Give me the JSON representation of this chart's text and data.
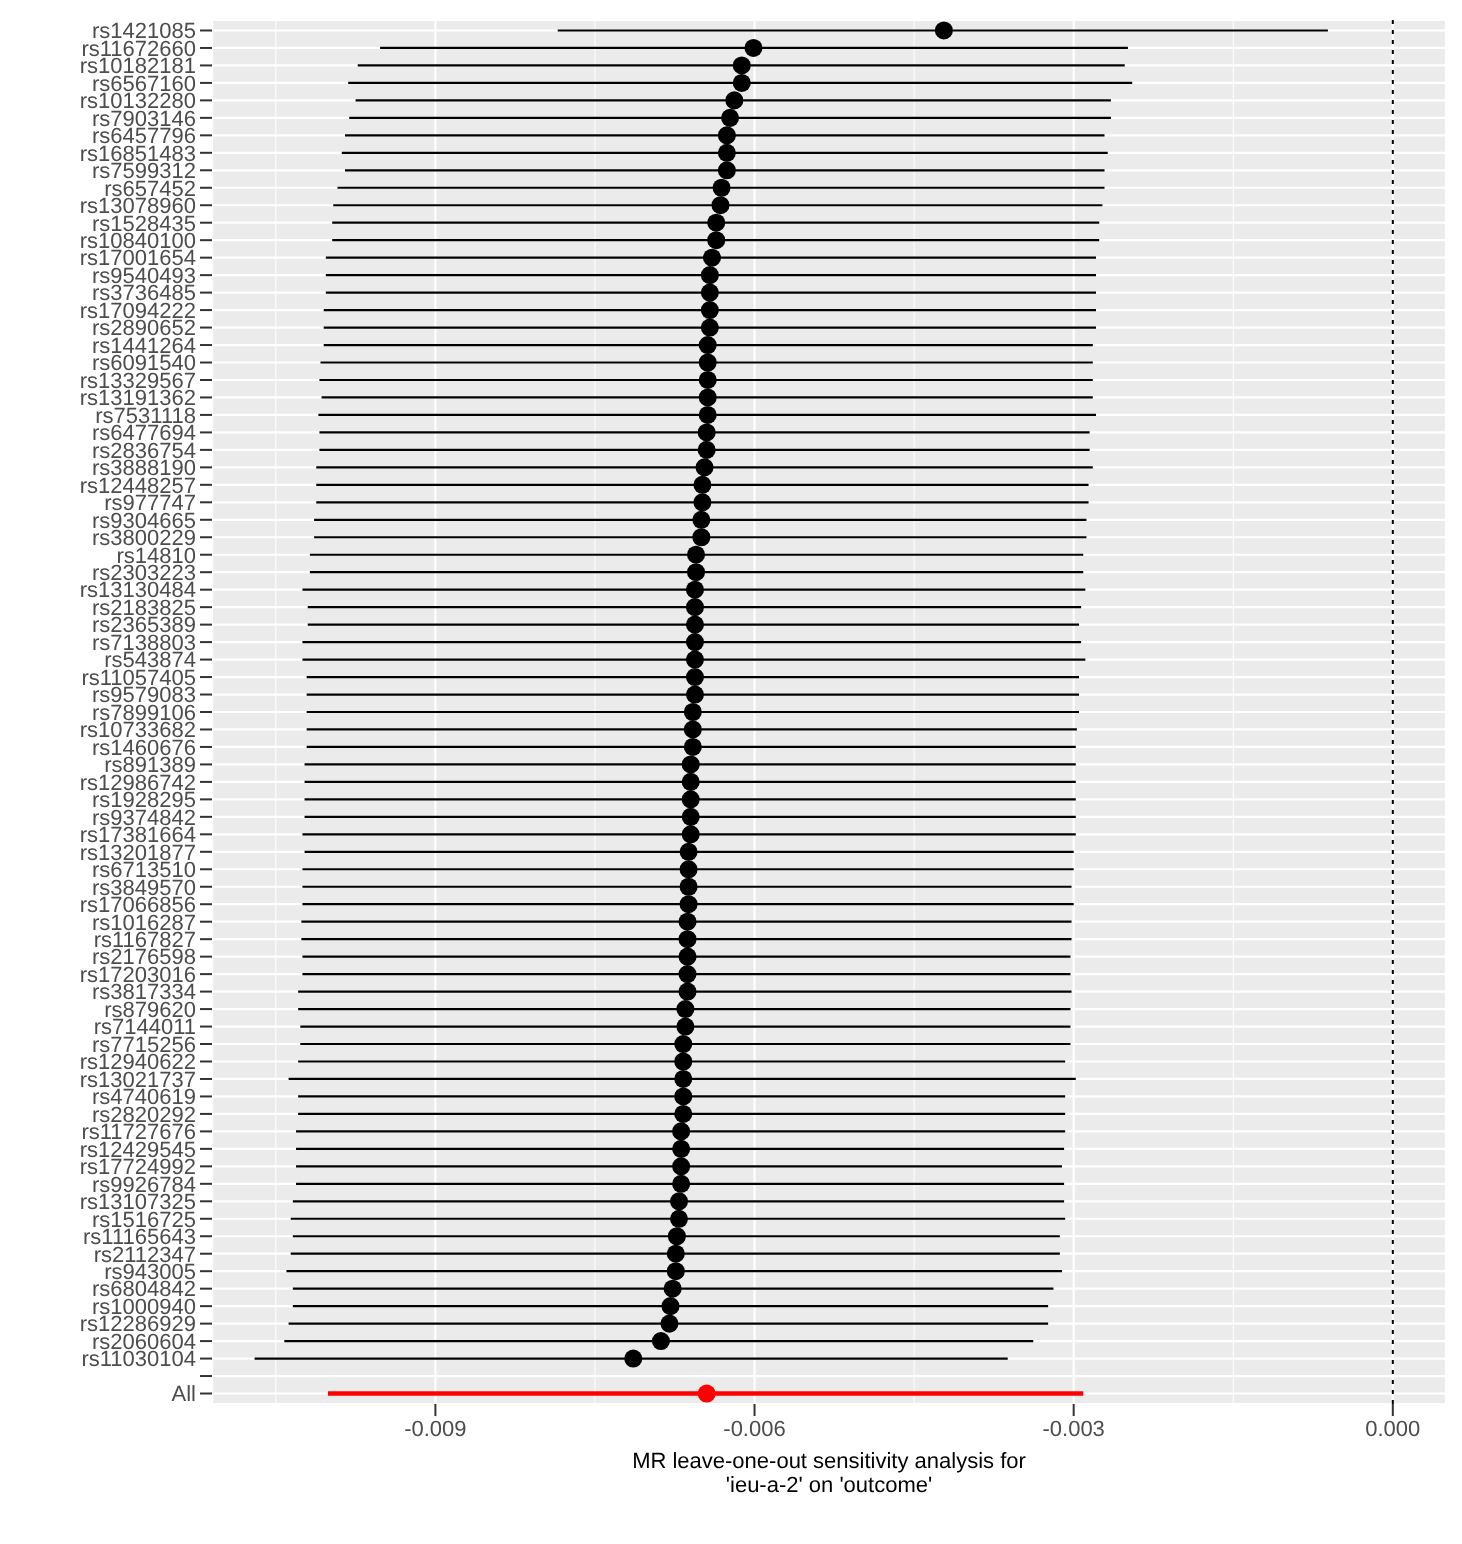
{
  "chart_data": {
    "type": "scatter",
    "orientation": "horizontal",
    "xlabel": "MR leave-one-out sensitivity analysis for\n'ieu-a-2' on 'outcome'",
    "categories": [
      "rs1421085",
      "rs11672660",
      "rs10182181",
      "rs6567160",
      "rs10132280",
      "rs7903146",
      "rs6457796",
      "rs16851483",
      "rs7599312",
      "rs657452",
      "rs13078960",
      "rs1528435",
      "rs10840100",
      "rs17001654",
      "rs9540493",
      "rs3736485",
      "rs17094222",
      "rs2890652",
      "rs1441264",
      "rs6091540",
      "rs13329567",
      "rs13191362",
      "rs7531118",
      "rs6477694",
      "rs2836754",
      "rs3888190",
      "rs12448257",
      "rs977747",
      "rs9304665",
      "rs3800229",
      "rs14810",
      "rs2303223",
      "rs13130484",
      "rs2183825",
      "rs2365389",
      "rs7138803",
      "rs543874",
      "rs11057405",
      "rs9579083",
      "rs7899106",
      "rs10733682",
      "rs1460676",
      "rs891389",
      "rs12986742",
      "rs1928295",
      "rs9374842",
      "rs17381664",
      "rs13201877",
      "rs6713510",
      "rs3849570",
      "rs17066856",
      "rs1016287",
      "rs1167827",
      "rs2176598",
      "rs17203016",
      "rs3817334",
      "rs879620",
      "rs7144011",
      "rs7715256",
      "rs12940622",
      "rs13021737",
      "rs4740619",
      "rs2820292",
      "rs11727676",
      "rs12429545",
      "rs17724992",
      "rs9926784",
      "rs13107325",
      "rs1516725",
      "rs11165643",
      "rs2112347",
      "rs943005",
      "rs6804842",
      "rs1000940",
      "rs12286929",
      "rs2060604",
      "rs11030104",
      null,
      "All"
    ],
    "series": [
      {
        "color": "#000000",
        "values": [
          -0.00422,
          -0.00601,
          -0.00612,
          -0.00612,
          -0.00619,
          -0.00623,
          -0.00626,
          -0.00626,
          -0.00626,
          -0.00631,
          -0.00632,
          -0.00636,
          -0.00636,
          -0.0064,
          -0.00642,
          -0.00642,
          -0.00642,
          -0.00642,
          -0.00644,
          -0.00644,
          -0.00644,
          -0.00644,
          -0.00644,
          -0.00645,
          -0.00645,
          -0.00647,
          -0.00649,
          -0.00649,
          -0.0065,
          -0.0065,
          -0.00655,
          -0.00655,
          -0.00656,
          -0.00656,
          -0.00656,
          -0.00656,
          -0.00656,
          -0.00656,
          -0.00656,
          -0.00658,
          -0.00658,
          -0.00658,
          -0.0066,
          -0.0066,
          -0.0066,
          -0.0066,
          -0.0066,
          -0.00662,
          -0.00662,
          -0.00662,
          -0.00662,
          -0.00663,
          -0.00663,
          -0.00663,
          -0.00663,
          -0.00663,
          -0.00665,
          -0.00665,
          -0.00667,
          -0.00667,
          -0.00667,
          -0.00667,
          -0.00667,
          -0.00669,
          -0.00669,
          -0.00669,
          -0.00669,
          -0.00671,
          -0.00671,
          -0.00673,
          -0.00674,
          -0.00674,
          -0.00677,
          -0.00679,
          -0.0068,
          -0.00688,
          -0.00714,
          null,
          null
        ],
        "errors": [
          [
            -0.00785,
            -0.00061
          ],
          [
            -0.00952,
            -0.00249
          ],
          [
            -0.00973,
            -0.00252
          ],
          [
            -0.00982,
            -0.00245
          ],
          [
            -0.00975,
            -0.00265
          ],
          [
            -0.00981,
            -0.00265
          ],
          [
            -0.00985,
            -0.00271
          ],
          [
            -0.00988,
            -0.00268
          ],
          [
            -0.00985,
            -0.00271
          ],
          [
            -0.00992,
            -0.00271
          ],
          [
            -0.00996,
            -0.00273
          ],
          [
            -0.00997,
            -0.00276
          ],
          [
            -0.00997,
            -0.00276
          ],
          [
            -0.01003,
            -0.00279
          ],
          [
            -0.01003,
            -0.00279
          ],
          [
            -0.01003,
            -0.00279
          ],
          [
            -0.01005,
            -0.00279
          ],
          [
            -0.01005,
            -0.00279
          ],
          [
            -0.01005,
            -0.00282
          ],
          [
            -0.01008,
            -0.00282
          ],
          [
            -0.01009,
            -0.00282
          ],
          [
            -0.01007,
            -0.00282
          ],
          [
            -0.0101,
            -0.00279
          ],
          [
            -0.01009,
            -0.00285
          ],
          [
            -0.01009,
            -0.00285
          ],
          [
            -0.01012,
            -0.00282
          ],
          [
            -0.01012,
            -0.00286
          ],
          [
            -0.01012,
            -0.00286
          ],
          [
            -0.01014,
            -0.00288
          ],
          [
            -0.01014,
            -0.00288
          ],
          [
            -0.01018,
            -0.00291
          ],
          [
            -0.01018,
            -0.00291
          ],
          [
            -0.01025,
            -0.00289
          ],
          [
            -0.0102,
            -0.00293
          ],
          [
            -0.0102,
            -0.00295
          ],
          [
            -0.01025,
            -0.00293
          ],
          [
            -0.01025,
            -0.00289
          ],
          [
            -0.01021,
            -0.00295
          ],
          [
            -0.01021,
            -0.00295
          ],
          [
            -0.01021,
            -0.00295
          ],
          [
            -0.01021,
            -0.00297
          ],
          [
            -0.01021,
            -0.00298
          ],
          [
            -0.01023,
            -0.00298
          ],
          [
            -0.01023,
            -0.00298
          ],
          [
            -0.01023,
            -0.00298
          ],
          [
            -0.01023,
            -0.00298
          ],
          [
            -0.01025,
            -0.00298
          ],
          [
            -0.01023,
            -0.003
          ],
          [
            -0.01025,
            -0.003
          ],
          [
            -0.01025,
            -0.00302
          ],
          [
            -0.01025,
            -0.003
          ],
          [
            -0.01026,
            -0.00302
          ],
          [
            -0.01026,
            -0.00302
          ],
          [
            -0.01025,
            -0.00303
          ],
          [
            -0.01025,
            -0.00303
          ],
          [
            -0.01029,
            -0.00302
          ],
          [
            -0.01029,
            -0.00303
          ],
          [
            -0.01027,
            -0.00303
          ],
          [
            -0.01027,
            -0.00303
          ],
          [
            -0.01029,
            -0.00308
          ],
          [
            -0.01038,
            -0.00298
          ],
          [
            -0.01029,
            -0.00308
          ],
          [
            -0.01029,
            -0.00308
          ],
          [
            -0.01031,
            -0.00308
          ],
          [
            -0.01031,
            -0.00309
          ],
          [
            -0.01031,
            -0.00311
          ],
          [
            -0.01031,
            -0.00309
          ],
          [
            -0.01034,
            -0.00309
          ],
          [
            -0.01036,
            -0.00308
          ],
          [
            -0.01034,
            -0.00313
          ],
          [
            -0.01036,
            -0.00313
          ],
          [
            -0.0104,
            -0.00311
          ],
          [
            -0.01034,
            -0.00319
          ],
          [
            -0.01034,
            -0.00324
          ],
          [
            -0.01038,
            -0.00324
          ],
          [
            -0.01042,
            -0.00338
          ],
          [
            -0.0107,
            -0.00362
          ],
          null,
          null
        ]
      },
      {
        "color": "#ff0000",
        "values": [
          null,
          null,
          null,
          null,
          null,
          null,
          null,
          null,
          null,
          null,
          null,
          null,
          null,
          null,
          null,
          null,
          null,
          null,
          null,
          null,
          null,
          null,
          null,
          null,
          null,
          null,
          null,
          null,
          null,
          null,
          null,
          null,
          null,
          null,
          null,
          null,
          null,
          null,
          null,
          null,
          null,
          null,
          null,
          null,
          null,
          null,
          null,
          null,
          null,
          null,
          null,
          null,
          null,
          null,
          null,
          null,
          null,
          null,
          null,
          null,
          null,
          null,
          null,
          null,
          null,
          null,
          null,
          null,
          null,
          null,
          null,
          null,
          null,
          null,
          null,
          null,
          null,
          null,
          -0.00645
        ],
        "errors": [
          null,
          null,
          null,
          null,
          null,
          null,
          null,
          null,
          null,
          null,
          null,
          null,
          null,
          null,
          null,
          null,
          null,
          null,
          null,
          null,
          null,
          null,
          null,
          null,
          null,
          null,
          null,
          null,
          null,
          null,
          null,
          null,
          null,
          null,
          null,
          null,
          null,
          null,
          null,
          null,
          null,
          null,
          null,
          null,
          null,
          null,
          null,
          null,
          null,
          null,
          null,
          null,
          null,
          null,
          null,
          null,
          null,
          null,
          null,
          null,
          null,
          null,
          null,
          null,
          null,
          null,
          null,
          null,
          null,
          null,
          null,
          null,
          null,
          null,
          null,
          null,
          null,
          null,
          [
            -0.01001,
            -0.00291
          ]
        ]
      }
    ],
    "xlim": [
      -0.0111,
      0.0005
    ],
    "xticks": [
      -0.009,
      -0.006,
      -0.003,
      {
        "value": 0,
        "label": "0.000"
      }
    ],
    "ref_lines": [
      {
        "axis": "x",
        "value": 0,
        "line_style": "dotted",
        "color": "#000000"
      }
    ],
    "grid": true,
    "legend": false,
    "marker": "circle"
  }
}
